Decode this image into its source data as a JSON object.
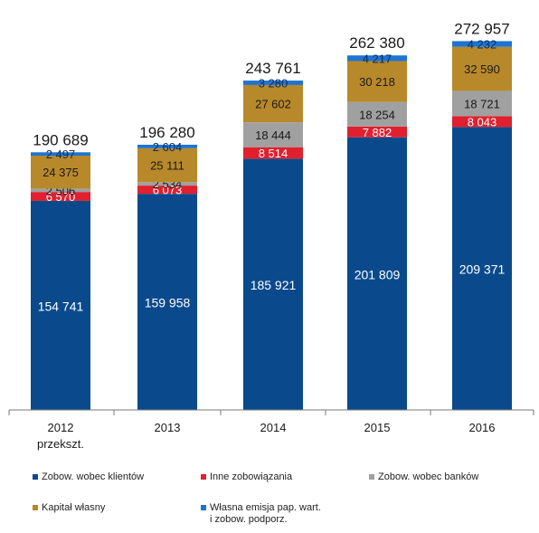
{
  "chart_data": {
    "type": "bar",
    "stacked": true,
    "categories": [
      "2012\nprzekszt.",
      "2013",
      "2014",
      "2015",
      "2016"
    ],
    "totals": [
      "190 689",
      "196 280",
      "243 761",
      "262 380",
      "272 957"
    ],
    "ylim": [
      0,
      290000
    ],
    "grid": false,
    "legend_position": "bottom",
    "series": [
      {
        "name": "Zobow. wobec klientów",
        "color": "#0a4a8c",
        "values": [
          154741,
          159958,
          185921,
          201809,
          209371
        ],
        "labels": [
          "154 741",
          "159 958",
          "185 921",
          "201 809",
          "209 371"
        ]
      },
      {
        "name": "Inne zobowiązania",
        "color": "#e0202e",
        "values": [
          6570,
          6073,
          8514,
          7882,
          8043
        ],
        "labels": [
          "6 570",
          "6 073",
          "8 514",
          "7 882",
          "8 043"
        ]
      },
      {
        "name": "Zobow. wobec banków",
        "color": "#a0a0a0",
        "values": [
          2506,
          2534,
          18444,
          18254,
          18721
        ],
        "labels": [
          "2 506",
          "2 534",
          "18 444",
          "18 254",
          "18 721"
        ]
      },
      {
        "name": "Kapitał własny",
        "color": "#b8892a",
        "values": [
          24375,
          25111,
          27602,
          30218,
          32590
        ],
        "labels": [
          "24 375",
          "25 111",
          "27 602",
          "30 218",
          "32 590"
        ]
      },
      {
        "name": "Własna emisja pap. wart.\ni zobow. podporz.",
        "color": "#1e74d0",
        "values": [
          2497,
          2604,
          3280,
          4217,
          4232
        ],
        "labels": [
          "2 497",
          "2 604",
          "3 280",
          "4 217",
          "4 232"
        ]
      }
    ]
  }
}
